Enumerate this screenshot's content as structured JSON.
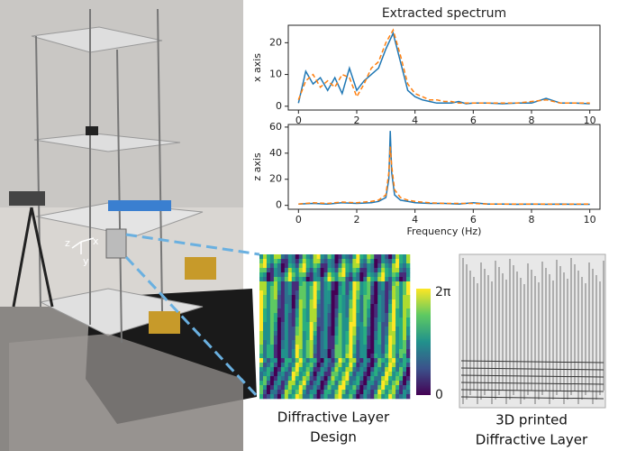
{
  "chart_data": [
    {
      "type": "line",
      "title": "Extracted spectrum",
      "ylabel": "x axis",
      "x": [
        0,
        0.25,
        0.5,
        0.75,
        1,
        1.25,
        1.5,
        1.75,
        2,
        2.25,
        2.5,
        2.75,
        3,
        3.25,
        3.5,
        3.75,
        4,
        4.25,
        4.5,
        4.75,
        5,
        5.25,
        5.5,
        5.75,
        6,
        6.5,
        7,
        7.5,
        8,
        8.5,
        9,
        9.5,
        10
      ],
      "series": [
        {
          "color": "#1f77b4",
          "style": "solid",
          "values": [
            1,
            11,
            7,
            9,
            5,
            9,
            4,
            12,
            5,
            8,
            10,
            12,
            18,
            23,
            14,
            5,
            3,
            2,
            1.5,
            1,
            1,
            1,
            1.5,
            0.8,
            1,
            1,
            0.8,
            1,
            1,
            2.5,
            1,
            1,
            0.8
          ]
        },
        {
          "color": "#ff7f0e",
          "style": "dashed",
          "values": [
            2,
            8,
            10,
            6,
            8,
            6,
            10,
            9,
            3,
            7,
            12,
            14,
            20,
            24,
            16,
            7,
            4,
            3,
            2,
            2,
            1.5,
            1.5,
            1,
            1,
            1,
            1,
            1,
            1,
            1.5,
            2,
            1,
            1,
            1
          ]
        }
      ],
      "xlim": [
        -0.35,
        10.35
      ],
      "xticks": [
        0,
        2,
        4,
        6,
        8,
        10
      ],
      "ylim": [
        -1.2,
        25.5
      ],
      "yticks": [
        0,
        10,
        20
      ]
    },
    {
      "type": "line",
      "ylabel": "z axis",
      "xlabel": "Frequency (Hz)",
      "x": [
        0,
        0.5,
        1,
        1.5,
        2,
        2.5,
        2.75,
        3,
        3.1,
        3.15,
        3.2,
        3.3,
        3.5,
        3.75,
        4,
        4.5,
        5,
        5.5,
        6,
        6.5,
        7,
        7.5,
        8,
        8.5,
        9,
        9.5,
        10
      ],
      "series": [
        {
          "color": "#1f77b4",
          "style": "solid",
          "values": [
            1,
            1.5,
            1,
            2,
            1.5,
            2,
            3,
            6,
            20,
            57,
            25,
            8,
            4,
            3,
            2,
            1.5,
            1.5,
            1,
            2,
            1,
            1,
            0.8,
            1,
            0.8,
            1,
            0.8,
            0.8
          ]
        },
        {
          "color": "#ff7f0e",
          "style": "dashed",
          "values": [
            1,
            2,
            1.5,
            2.5,
            2,
            3,
            4,
            8,
            25,
            45,
            30,
            12,
            6,
            4,
            3,
            2,
            1.5,
            1.5,
            1.5,
            1,
            1,
            1,
            1,
            1,
            0.8,
            1,
            1
          ]
        }
      ],
      "xlim": [
        -0.35,
        10.35
      ],
      "xticks": [
        0,
        2,
        4,
        6,
        8,
        10
      ],
      "ylim": [
        -3,
        62
      ],
      "yticks": [
        0,
        20,
        40,
        60
      ]
    }
  ],
  "figure": {
    "photo_axes": [
      "z",
      "x",
      "y"
    ],
    "colorbar": {
      "top": "2π",
      "bottom": "0"
    },
    "captions": {
      "design": [
        "Diffractive Layer",
        "Design"
      ],
      "printed": [
        "3D printed",
        "Diffractive Layer"
      ]
    }
  }
}
